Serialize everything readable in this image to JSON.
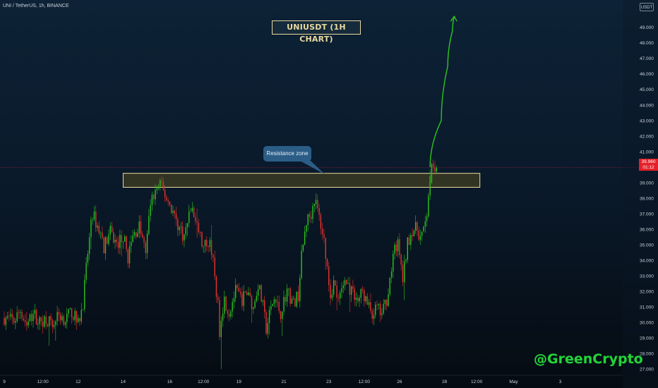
{
  "header": {
    "symbol_info": "UNI / TetherUS, 1h, BINANCE",
    "currency": "USDT"
  },
  "price_tag": {
    "price": "39.960",
    "countdown": "01:12"
  },
  "watermark": "@GreenCrypto",
  "colors": {
    "up": "#2ec31f",
    "down": "#e7332e",
    "zone_fill": "#3a3a22",
    "zone_border": "#e8d9a0",
    "projection": "#2ec31f",
    "price_line": "#e5202a"
  },
  "chart_data": {
    "type": "candlestick",
    "title": "UNIUSDT (1H CHART)",
    "annotation": "Resistance zone",
    "xlabel": "",
    "ylabel": "",
    "ylim": [
      26.6,
      50.3
    ],
    "grid": false,
    "y_ticks": [
      27,
      28,
      29,
      30,
      31,
      32,
      33,
      34,
      35,
      36,
      37,
      38,
      39,
      40,
      41,
      42,
      43,
      44,
      45,
      46,
      47,
      48,
      49
    ],
    "y_tick_labels": [
      "27.000",
      "28.000",
      "29.000",
      "30.000",
      "31.000",
      "32.000",
      "33.000",
      "34.000",
      "35.000",
      "36.000",
      "37.000",
      "38.000",
      "39.000",
      "40.000",
      "41.000",
      "42.000",
      "43.000",
      "44.000",
      "45.000",
      "46.000",
      "47.000",
      "48.000",
      "49.000"
    ],
    "x_range": [
      0,
      384
    ],
    "x_ticks": [
      {
        "pos": 0,
        "label": "9"
      },
      {
        "pos": 24,
        "label": "12:00"
      },
      {
        "pos": 46,
        "label": "12"
      },
      {
        "pos": 74,
        "label": "14"
      },
      {
        "pos": 103,
        "label": "16"
      },
      {
        "pos": 124,
        "label": "12:00"
      },
      {
        "pos": 146,
        "label": "19"
      },
      {
        "pos": 174,
        "label": "21"
      },
      {
        "pos": 202,
        "label": "23"
      },
      {
        "pos": 224,
        "label": "12:00"
      },
      {
        "pos": 246,
        "label": "26"
      },
      {
        "pos": 274,
        "label": "28"
      },
      {
        "pos": 294,
        "label": "12:00"
      },
      {
        "pos": 317,
        "label": "May"
      },
      {
        "pos": 346,
        "label": "3"
      }
    ],
    "current_price": 39.96,
    "resistance_zone": {
      "x_start": 74,
      "x_end": 296,
      "y_low": 38.7,
      "y_high": 39.6
    },
    "projection": {
      "x": [
        265,
        272,
        276,
        279,
        280
      ],
      "y": [
        40.0,
        43.0,
        46.5,
        48.8,
        49.7
      ]
    },
    "close_path": {
      "x": [
        0,
        6,
        10,
        14,
        18,
        22,
        26,
        30,
        34,
        38,
        42,
        46,
        49,
        52,
        55,
        58,
        60,
        62,
        66,
        70,
        74,
        77,
        80,
        84,
        88,
        91,
        94,
        97,
        100,
        104,
        108,
        112,
        116,
        120,
        124,
        128,
        131,
        133,
        134,
        135,
        137,
        140,
        142,
        144,
        148,
        152,
        155,
        158,
        161,
        163,
        165,
        168,
        172,
        176,
        180,
        183,
        185,
        188,
        191,
        193,
        195,
        197,
        199,
        201,
        203,
        205,
        208,
        212,
        216,
        220,
        223,
        226,
        229,
        232,
        235,
        238,
        241,
        243,
        245,
        248,
        251,
        254,
        257,
        259,
        261,
        263,
        264,
        265
      ],
      "y": [
        30.3,
        30.1,
        30.8,
        29.8,
        30.6,
        30.0,
        30.3,
        29.8,
        30.5,
        30.2,
        30.7,
        29.9,
        31.3,
        34.5,
        37.0,
        36.2,
        35.7,
        34.9,
        35.8,
        35.0,
        35.6,
        34.2,
        35.5,
        36.2,
        34.5,
        37.7,
        38.4,
        38.9,
        38.2,
        37.4,
        36.3,
        35.5,
        37.4,
        36.3,
        34.7,
        35.5,
        33.0,
        31.0,
        29.5,
        30.5,
        31.5,
        30.6,
        31.4,
        32.0,
        31.5,
        32.0,
        30.9,
        32.5,
        31.0,
        29.6,
        30.5,
        31.5,
        30.6,
        32.1,
        31.2,
        31.8,
        34.2,
        36.5,
        37.0,
        38.0,
        37.2,
        36.3,
        35.3,
        33.5,
        31.8,
        32.6,
        31.3,
        32.7,
        32.0,
        31.4,
        32.0,
        31.1,
        30.6,
        30.9,
        30.5,
        31.5,
        33.4,
        34.7,
        35.0,
        32.8,
        35.1,
        36.0,
        36.0,
        35.5,
        35.8,
        37.0,
        38.3,
        39.0
      ]
    },
    "last_candles": [
      {
        "x": 266,
        "open": 39.0,
        "high": 40.3,
        "low": 38.9,
        "close": 40.2
      },
      {
        "x": 267,
        "open": 40.2,
        "high": 40.5,
        "low": 39.7,
        "close": 40.0
      },
      {
        "x": 268,
        "open": 40.0,
        "high": 40.4,
        "low": 39.5,
        "close": 39.7
      },
      {
        "x": 269,
        "open": 39.7,
        "high": 40.1,
        "low": 39.6,
        "close": 39.96
      }
    ]
  }
}
